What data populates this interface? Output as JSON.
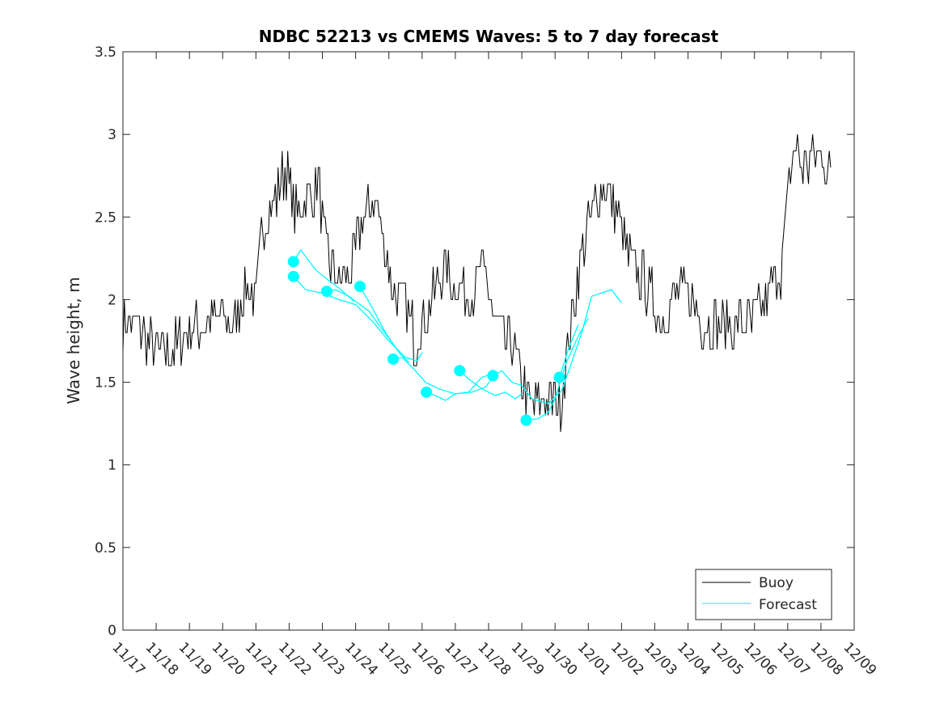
{
  "chart_data": {
    "type": "line",
    "title": "NDBC 52213 vs CMEMS Waves: 5 to 7 day forecast",
    "xlabel": "",
    "ylabel": "Wave height, m",
    "ylim": [
      0,
      3.5
    ],
    "yticks": [
      0,
      0.5,
      1,
      1.5,
      2,
      2.5,
      3,
      3.5
    ],
    "ytick_labels": [
      "0",
      "0.5",
      "1",
      "1.5",
      "2",
      "2.5",
      "3",
      "3.5"
    ],
    "xlim_days": [
      0,
      22
    ],
    "xtick_labels": [
      "11/17",
      "11/18",
      "11/19",
      "11/20",
      "11/21",
      "11/22",
      "11/23",
      "11/24",
      "11/25",
      "11/26",
      "11/27",
      "11/28",
      "11/29",
      "11/30",
      "12/01",
      "12/02",
      "12/03",
      "12/04",
      "12/05",
      "12/06",
      "12/07",
      "12/08",
      "12/09"
    ],
    "x_units": "days since 11/17",
    "grid": false,
    "legend": {
      "placement": "bottom-right",
      "entries": [
        "Buoy",
        "Forecast"
      ]
    },
    "colors": {
      "buoy": "#000000",
      "forecast": "#00FFFF"
    },
    "buoy_control_points": [
      [
        0,
        1.9
      ],
      [
        0.6,
        1.8
      ],
      [
        1,
        1.7
      ],
      [
        1.5,
        1.7
      ],
      [
        2,
        1.8
      ],
      [
        2.5,
        1.85
      ],
      [
        3,
        1.9
      ],
      [
        3.3,
        1.8
      ],
      [
        3.7,
        2.1
      ],
      [
        4.0,
        2.0
      ],
      [
        4.2,
        2.45
      ],
      [
        4.6,
        2.6
      ],
      [
        4.9,
        2.8
      ],
      [
        5.2,
        2.5
      ],
      [
        5.5,
        2.6
      ],
      [
        5.9,
        2.7
      ],
      [
        6.1,
        2.3
      ],
      [
        6.5,
        2.1
      ],
      [
        6.9,
        2.2
      ],
      [
        7.2,
        2.5
      ],
      [
        7.6,
        2.6
      ],
      [
        7.9,
        2.3
      ],
      [
        8.2,
        2.0
      ],
      [
        8.5,
        2.0
      ],
      [
        8.8,
        1.75
      ],
      [
        9.2,
        1.95
      ],
      [
        9.6,
        2.2
      ],
      [
        10,
        2.1
      ],
      [
        10.5,
        2.05
      ],
      [
        10.8,
        2.2
      ],
      [
        11.1,
        1.95
      ],
      [
        11.4,
        1.75
      ],
      [
        11.8,
        1.7
      ],
      [
        12.0,
        1.5
      ],
      [
        12.3,
        1.35
      ],
      [
        12.8,
        1.4
      ],
      [
        13.2,
        1.4
      ],
      [
        13.5,
        1.9
      ],
      [
        13.8,
        2.3
      ],
      [
        14.2,
        2.6
      ],
      [
        14.5,
        2.7
      ],
      [
        14.9,
        2.5
      ],
      [
        15.3,
        2.2
      ],
      [
        15.7,
        2.1
      ],
      [
        16.2,
        1.9
      ],
      [
        16.5,
        2.0
      ],
      [
        17.0,
        2.05
      ],
      [
        17.5,
        1.85
      ],
      [
        18,
        1.85
      ],
      [
        18.5,
        1.85
      ],
      [
        19,
        1.85
      ],
      [
        19.5,
        2.05
      ],
      [
        19.8,
        2.2
      ],
      [
        20.0,
        2.6
      ],
      [
        20.2,
        2.95
      ],
      [
        20.5,
        2.8
      ],
      [
        21.0,
        2.9
      ],
      [
        21.3,
        2.7
      ]
    ],
    "forecast_segments": [
      [
        [
          5.13,
          2.23
        ],
        [
          5.35,
          2.3
        ],
        [
          5.8,
          2.18
        ],
        [
          6.1,
          2.13
        ],
        [
          6.5,
          2.07
        ],
        [
          6.95,
          1.99
        ]
      ],
      [
        [
          5.13,
          2.14
        ],
        [
          5.5,
          2.06
        ],
        [
          6.0,
          2.04
        ],
        [
          6.5,
          2.0
        ],
        [
          7.0,
          1.97
        ],
        [
          7.5,
          1.87
        ],
        [
          8.0,
          1.75
        ],
        [
          8.5,
          1.65
        ],
        [
          8.85,
          1.63
        ],
        [
          9.0,
          1.68
        ]
      ],
      [
        [
          6.13,
          2.05
        ],
        [
          6.4,
          2.06
        ],
        [
          6.8,
          2.02
        ],
        [
          7.0,
          1.99
        ],
        [
          7.4,
          1.93
        ],
        [
          7.8,
          1.82
        ],
        [
          8.1,
          1.74
        ]
      ],
      [
        [
          7.13,
          2.08
        ],
        [
          7.5,
          1.95
        ],
        [
          7.9,
          1.8
        ],
        [
          8.3,
          1.68
        ],
        [
          8.6,
          1.62
        ]
      ],
      [
        [
          8.13,
          1.64
        ],
        [
          8.4,
          1.65
        ],
        [
          8.8,
          1.57
        ],
        [
          9.1,
          1.5
        ],
        [
          9.5,
          1.46
        ],
        [
          10.0,
          1.43
        ],
        [
          10.5,
          1.44
        ],
        [
          10.9,
          1.47
        ],
        [
          11.1,
          1.52
        ]
      ],
      [
        [
          9.13,
          1.44
        ],
        [
          9.4,
          1.42
        ],
        [
          9.7,
          1.39
        ],
        [
          10.0,
          1.43
        ],
        [
          10.4,
          1.44
        ],
        [
          10.8,
          1.53
        ],
        [
          11.1,
          1.55
        ]
      ],
      [
        [
          10.13,
          1.57
        ],
        [
          10.4,
          1.52
        ],
        [
          10.8,
          1.46
        ],
        [
          11.2,
          1.42
        ],
        [
          11.5,
          1.44
        ],
        [
          11.8,
          1.4
        ],
        [
          12.0,
          1.43
        ]
      ],
      [
        [
          11.13,
          1.54
        ],
        [
          11.4,
          1.57
        ],
        [
          11.7,
          1.5
        ],
        [
          12.0,
          1.48
        ],
        [
          12.3,
          1.4
        ],
        [
          12.8,
          1.37
        ],
        [
          13.2,
          1.45
        ],
        [
          13.5,
          1.62
        ],
        [
          13.8,
          1.8
        ],
        [
          14.1,
          2.02
        ],
        [
          14.4,
          2.04
        ],
        [
          14.7,
          2.06
        ],
        [
          15.0,
          1.98
        ]
      ],
      [
        [
          12.13,
          1.27
        ],
        [
          12.5,
          1.28
        ],
        [
          12.8,
          1.32
        ],
        [
          13.0,
          1.4
        ],
        [
          13.3,
          1.6
        ],
        [
          13.7,
          1.78
        ],
        [
          14.0,
          1.89
        ]
      ],
      [
        [
          13.13,
          1.53
        ],
        [
          13.4,
          1.7
        ],
        [
          13.7,
          1.85
        ]
      ]
    ]
  }
}
